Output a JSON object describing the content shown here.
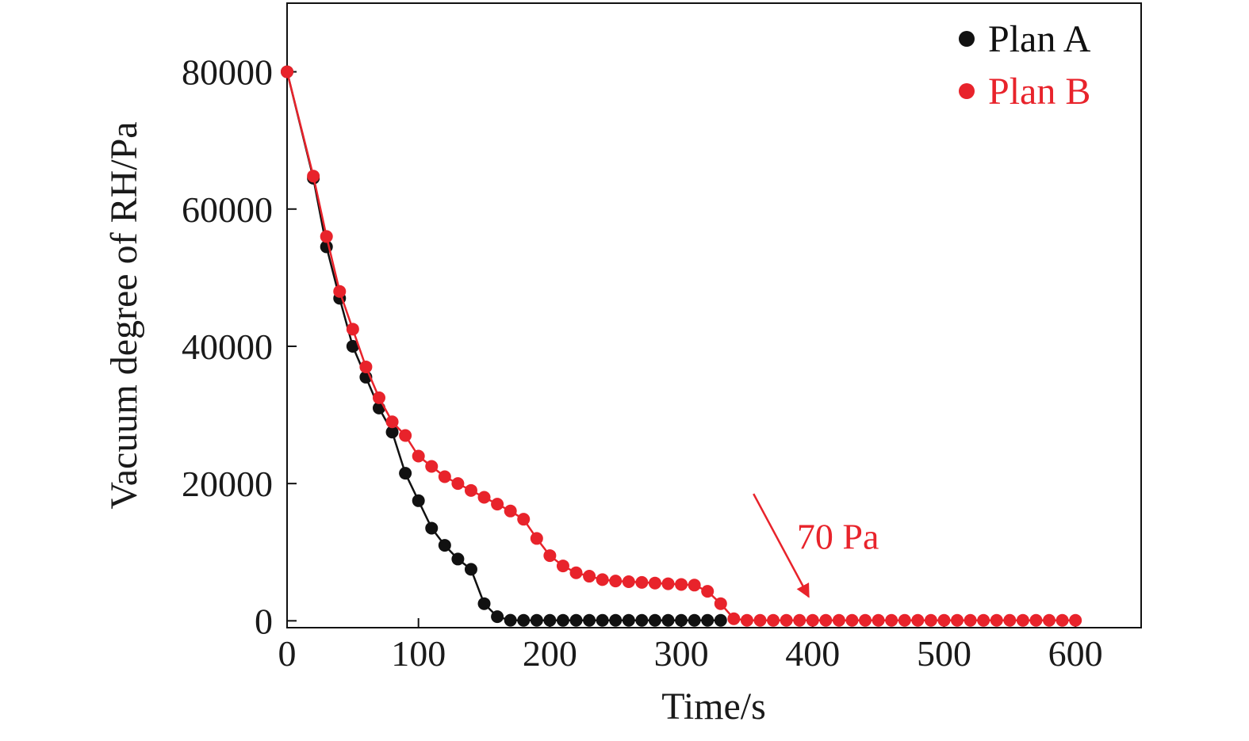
{
  "chart_data": {
    "type": "line",
    "title": "",
    "xlabel": "Time/s",
    "ylabel": "Vacuum degree of RH/Pa",
    "xlim": [
      0,
      650
    ],
    "ylim": [
      -1000,
      90000
    ],
    "x_ticks": [
      0,
      100,
      200,
      300,
      400,
      500,
      600
    ],
    "x_tick_labels": [
      "0",
      "100",
      "200",
      "300",
      "400",
      "500",
      "600"
    ],
    "y_ticks": [
      0,
      20000,
      40000,
      60000,
      80000
    ],
    "y_tick_labels": [
      "0",
      "20000",
      "40000",
      "60000",
      "80000"
    ],
    "grid": false,
    "legend_position": "top-right",
    "series": [
      {
        "name": "Plan A",
        "color": "#111111",
        "x": [
          0,
          20,
          30,
          40,
          50,
          60,
          70,
          80,
          90,
          100,
          110,
          120,
          130,
          140,
          150,
          160,
          170,
          180,
          190,
          200,
          210,
          220,
          230,
          240,
          250,
          260,
          270,
          280,
          290,
          300,
          310,
          320,
          330
        ],
        "y": [
          80000,
          64500,
          54500,
          47000,
          40000,
          35500,
          31000,
          27500,
          21500,
          17500,
          13500,
          11000,
          9000,
          7500,
          2500,
          600,
          80,
          70,
          70,
          70,
          70,
          70,
          70,
          70,
          70,
          70,
          70,
          70,
          70,
          70,
          70,
          70,
          70
        ]
      },
      {
        "name": "Plan B",
        "color": "#e8232b",
        "x": [
          0,
          20,
          30,
          40,
          50,
          60,
          70,
          80,
          90,
          100,
          110,
          120,
          130,
          140,
          150,
          160,
          170,
          180,
          190,
          200,
          210,
          220,
          230,
          240,
          250,
          260,
          270,
          280,
          290,
          300,
          310,
          320,
          330,
          340,
          350,
          360,
          370,
          380,
          390,
          400,
          410,
          420,
          430,
          440,
          450,
          460,
          470,
          480,
          490,
          500,
          510,
          520,
          530,
          540,
          550,
          560,
          570,
          580,
          590,
          600
        ],
        "y": [
          80000,
          64800,
          56000,
          48000,
          42500,
          37000,
          32500,
          29000,
          27000,
          24000,
          22500,
          21000,
          20000,
          19000,
          18000,
          17000,
          16000,
          14800,
          12000,
          9500,
          8000,
          7000,
          6500,
          6000,
          5800,
          5700,
          5600,
          5500,
          5400,
          5300,
          5200,
          4300,
          2500,
          300,
          70,
          70,
          70,
          70,
          70,
          70,
          70,
          70,
          70,
          70,
          70,
          70,
          70,
          70,
          70,
          70,
          70,
          70,
          70,
          70,
          70,
          70,
          70,
          70,
          70,
          70
        ]
      }
    ],
    "annotations": [
      {
        "text": "70 Pa",
        "color": "#e8232b",
        "arrow_from": [
          355,
          18500
        ],
        "arrow_to": [
          397,
          3500
        ],
        "text_at": [
          388,
          10500
        ]
      }
    ]
  }
}
